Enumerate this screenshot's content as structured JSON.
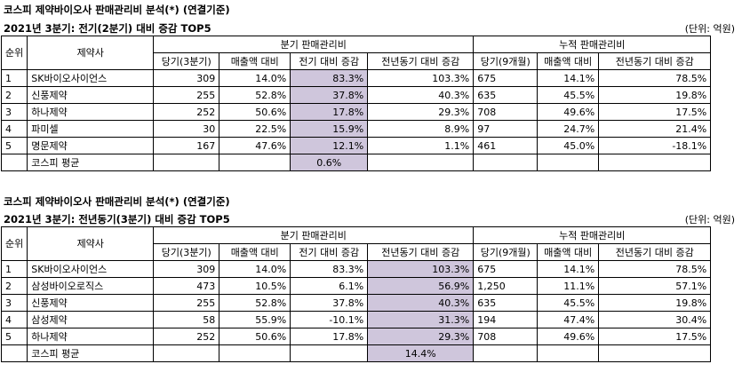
{
  "sections": [
    {
      "title": "코스피 제약바이오사 판매관리비 분석(*) (연결기준)",
      "subtitle": "2021년 3분기: 전기(2분기) 대비 증감 TOP5",
      "unit": "(단위: 억원)",
      "head": {
        "rank": "순위",
        "company": "제약사",
        "group_quarter": "분기 판매관리비",
        "group_cumulative": "누적 판매관리비",
        "cols": [
          "당기(3분기)",
          "매출액 대비",
          "전기 대비 증감",
          "전년동기 대비 증감",
          "당기(9개월)",
          "매출액 대비",
          "전년동기 대비 증감"
        ]
      },
      "rows": [
        {
          "rank": "1",
          "company": "SK바이오사이언스",
          "q": "309",
          "q_ratio": "14.0%",
          "qoq": "83.3%",
          "yoy": "103.3%",
          "cum": "675",
          "cum_ratio": "14.1%",
          "cum_yoy": "78.5%"
        },
        {
          "rank": "2",
          "company": "신풍제약",
          "q": "255",
          "q_ratio": "52.8%",
          "qoq": "37.8%",
          "yoy": "40.3%",
          "cum": "635",
          "cum_ratio": "45.5%",
          "cum_yoy": "19.8%"
        },
        {
          "rank": "3",
          "company": "하나제약",
          "q": "252",
          "q_ratio": "50.6%",
          "qoq": "17.8%",
          "yoy": "29.3%",
          "cum": "708",
          "cum_ratio": "49.6%",
          "cum_yoy": "17.5%"
        },
        {
          "rank": "4",
          "company": "파미셀",
          "q": "30",
          "q_ratio": "22.5%",
          "qoq": "15.9%",
          "yoy": "8.9%",
          "cum": "97",
          "cum_ratio": "24.7%",
          "cum_yoy": "21.4%"
        },
        {
          "rank": "5",
          "company": "명문제약",
          "q": "167",
          "q_ratio": "47.6%",
          "qoq": "12.1%",
          "yoy": "1.1%",
          "cum": "461",
          "cum_ratio": "45.0%",
          "cum_yoy": "-18.1%"
        }
      ],
      "avg": {
        "label": "코스피 평균",
        "value": "0.6%"
      }
    },
    {
      "title": "코스피 제약바이오사 판매관리비 분석(*) (연결기준)",
      "subtitle": "2021년 3분기: 전년동기(3분기) 대비 증감 TOP5",
      "unit": "(단위: 억원)",
      "head": {
        "rank": "순위",
        "company": "제약사",
        "group_quarter": "분기 판매관리비",
        "group_cumulative": "누적 판매관리비",
        "cols": [
          "당기(3분기)",
          "매출액 대비",
          "전기 대비 증감",
          "전년동기 대비 증감",
          "당기(9개월)",
          "매출액 대비",
          "전년동기 대비 증감"
        ]
      },
      "rows": [
        {
          "rank": "1",
          "company": "SK바이오사이언스",
          "q": "309",
          "q_ratio": "14.0%",
          "qoq": "83.3%",
          "yoy": "103.3%",
          "cum": "675",
          "cum_ratio": "14.1%",
          "cum_yoy": "78.5%"
        },
        {
          "rank": "2",
          "company": "삼성바이오로직스",
          "q": "473",
          "q_ratio": "10.5%",
          "qoq": "6.1%",
          "yoy": "56.9%",
          "cum": "1,250",
          "cum_ratio": "11.1%",
          "cum_yoy": "57.1%"
        },
        {
          "rank": "3",
          "company": "신풍제약",
          "q": "255",
          "q_ratio": "52.8%",
          "qoq": "37.8%",
          "yoy": "40.3%",
          "cum": "635",
          "cum_ratio": "45.5%",
          "cum_yoy": "19.8%"
        },
        {
          "rank": "4",
          "company": "삼성제약",
          "q": "58",
          "q_ratio": "55.9%",
          "qoq": "-10.1%",
          "yoy": "31.3%",
          "cum": "194",
          "cum_ratio": "47.4%",
          "cum_yoy": "30.4%"
        },
        {
          "rank": "5",
          "company": "하나제약",
          "q": "252",
          "q_ratio": "50.6%",
          "qoq": "17.8%",
          "yoy": "29.3%",
          "cum": "708",
          "cum_ratio": "49.6%",
          "cum_yoy": "17.5%"
        }
      ],
      "avg": {
        "label": "코스피 평균",
        "value": "14.4%"
      }
    }
  ]
}
